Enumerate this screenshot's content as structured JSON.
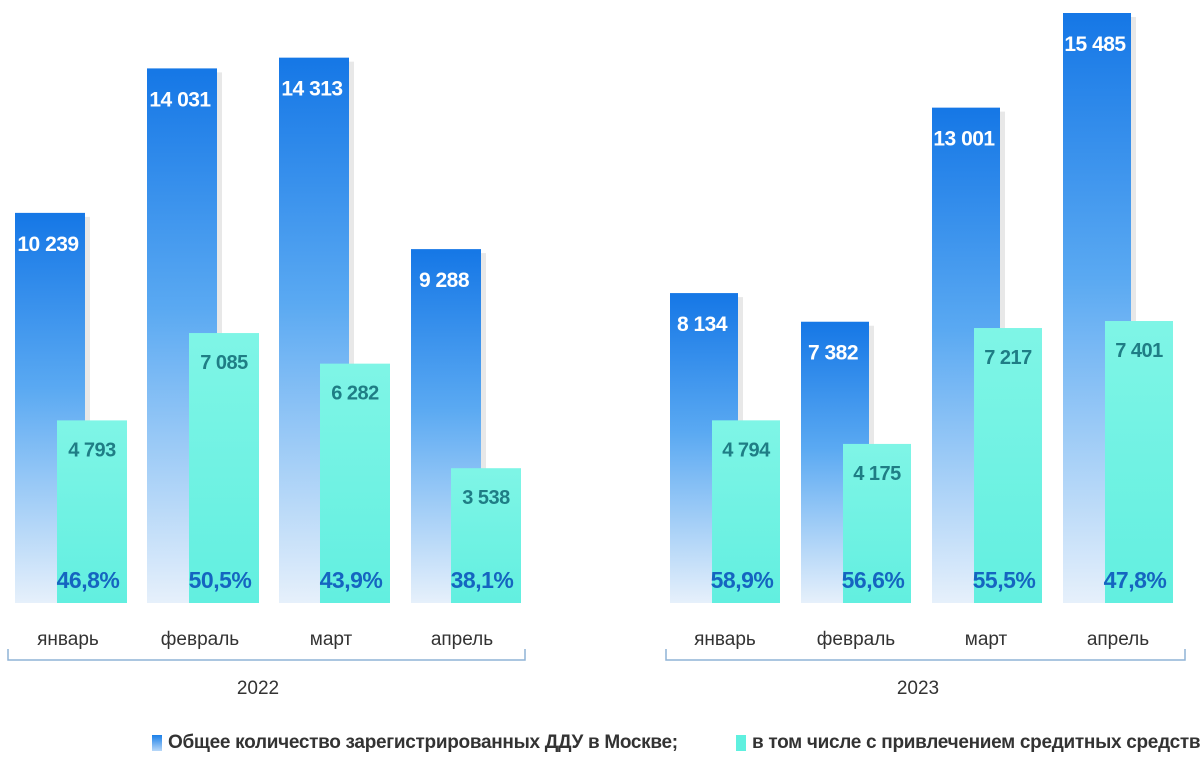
{
  "chart_data": [
    {
      "type": "bar",
      "group": "2022",
      "categories": [
        "январь",
        "февраль",
        "март",
        "апрель"
      ],
      "series": [
        {
          "name": "Общее количество зарегистрированных ДДУ в Москве;",
          "values": [
            10239,
            14031,
            14313,
            9288
          ],
          "labels": [
            "10 239",
            "14 031",
            "14 313",
            "9 288"
          ]
        },
        {
          "name": "в том числе с привлечением средитных средств",
          "values": [
            4793,
            7085,
            6282,
            3538
          ],
          "labels": [
            "4 793",
            "7 085",
            "6 282",
            "3 538"
          ]
        }
      ],
      "shares": [
        "46,8%",
        "50,5%",
        "43,9%",
        "38,1%"
      ]
    },
    {
      "type": "bar",
      "group": "2023",
      "categories": [
        "январь",
        "февраль",
        "март",
        "апрель"
      ],
      "series": [
        {
          "name": "Общее количество зарегистрированных ДДУ в Москве;",
          "values": [
            8134,
            7382,
            13001,
            15485
          ],
          "labels": [
            "8 134",
            "7 382",
            "13 001",
            "15 485"
          ]
        },
        {
          "name": "в том числе с привлечением средитных средств",
          "values": [
            4794,
            4175,
            7217,
            7401
          ],
          "labels": [
            "4 794",
            "4 175",
            "7 217",
            "7 401"
          ]
        }
      ],
      "shares": [
        "58,9%",
        "56,6%",
        "55,5%",
        "47,8%"
      ]
    }
  ],
  "legend": {
    "total": "Общее количество зарегистрированных ДДУ в Москве;",
    "credit": "в том числе с привлечением средитных средств"
  },
  "colors": {
    "total_top": "#1a7fe8",
    "total_bottom": "#e4effb",
    "credit": "#5ff0df",
    "credit_label": "#1f7d85",
    "share_label": "#1565c0",
    "bracket": "#8fb4d6"
  }
}
